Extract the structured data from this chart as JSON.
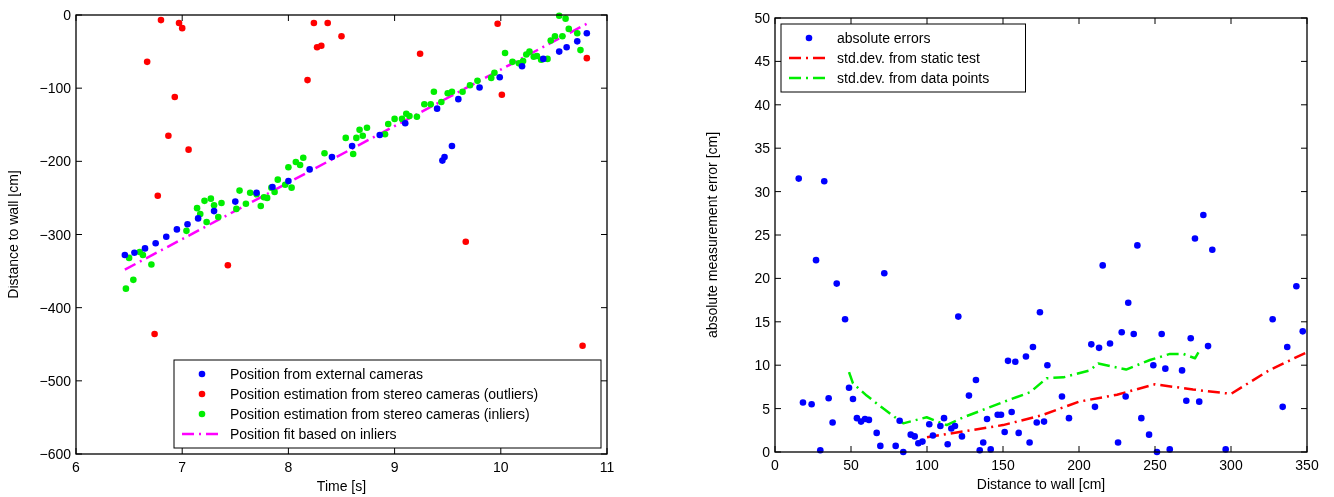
{
  "chart_data": [
    {
      "type": "scatter",
      "xlabel": "Time [s]",
      "ylabel": "Distance to wall [cm]",
      "xlim": [
        6,
        11
      ],
      "ylim": [
        -600,
        0
      ],
      "xticks": [
        6,
        7,
        8,
        9,
        10,
        11
      ],
      "yticks": [
        -600,
        -500,
        -400,
        -300,
        -200,
        -100,
        0
      ],
      "legend": "bottom right",
      "marker": "circle",
      "line_style": "dashed",
      "series": [
        {
          "name": "Position from external cameras",
          "color": "#0000ff",
          "x": [
            6.46,
            6.55,
            6.65,
            6.75,
            6.85,
            6.95,
            7.05,
            7.15,
            7.3,
            7.5,
            7.7,
            7.85,
            8.0,
            8.2,
            8.41,
            8.6,
            8.86,
            9.1,
            9.4,
            9.45,
            9.47,
            9.54,
            9.6,
            9.8,
            9.99,
            10.2,
            10.4,
            10.55,
            10.62,
            10.72,
            10.81
          ],
          "values": [
            -328,
            -325,
            -319,
            -312,
            -303,
            -293,
            -286,
            -278,
            -268,
            -255,
            -243,
            -235,
            -227,
            -211,
            -194,
            -179,
            -164,
            -148,
            -128,
            -199,
            -194,
            -179,
            -115,
            -99,
            -85,
            -70,
            -60,
            -50,
            -44,
            -36,
            -25
          ]
        },
        {
          "name": "Position estimation from stereo cameras (outliers)",
          "color": "#ff0000",
          "x": [
            6.8,
            6.67,
            6.97,
            7.0,
            6.93,
            6.87,
            7.06,
            6.77,
            8.24,
            8.37,
            8.27,
            8.31,
            8.18,
            8.5,
            9.24,
            9.97,
            10.01,
            10.81,
            9.67,
            10.77,
            7.43,
            6.74
          ],
          "values": [
            -7,
            -64,
            -11,
            -18,
            -112,
            -165,
            -184,
            -247,
            -11,
            -11,
            -44,
            -42,
            -89,
            -29,
            -53,
            -12,
            -109,
            -59,
            -310,
            -452,
            -342,
            -436
          ]
        },
        {
          "name": "Position estimation from stereo cameras (inliers)",
          "color": "#00ee00",
          "x": [
            6.47,
            6.54,
            6.5,
            6.6,
            6.63,
            6.71,
            7.04,
            7.14,
            7.17,
            7.21,
            7.23,
            7.27,
            7.3,
            7.34,
            7.37,
            7.51,
            7.54,
            7.6,
            7.64,
            7.7,
            7.74,
            7.77,
            7.8,
            7.84,
            7.87,
            7.9,
            7.97,
            8.0,
            8.03,
            8.07,
            8.11,
            8.14,
            8.34,
            8.54,
            8.61,
            8.64,
            8.67,
            8.7,
            8.74,
            8.91,
            8.94,
            9.0,
            9.07,
            9.11,
            9.14,
            9.21,
            9.28,
            9.34,
            9.37,
            9.44,
            9.5,
            9.54,
            9.64,
            9.71,
            9.78,
            9.91,
            9.94,
            10.04,
            10.11,
            10.17,
            10.21,
            10.24,
            10.27,
            10.31,
            10.34,
            10.38,
            10.44,
            10.47,
            10.51,
            10.58,
            10.55,
            10.61,
            10.64,
            10.72,
            10.75
          ],
          "values": [
            -374,
            -362,
            -332,
            -324,
            -328,
            -341,
            -295,
            -264,
            -272,
            -254,
            -283,
            -251,
            -260,
            -276,
            -257,
            -265,
            -240,
            -258,
            -243,
            -245,
            -261,
            -249,
            -250,
            -236,
            -242,
            -225,
            -232,
            -208,
            -236,
            -201,
            -205,
            -195,
            -189,
            -168,
            -190,
            -168,
            -157,
            -165,
            -154,
            -163,
            -149,
            -142,
            -142,
            -135,
            -138,
            -139,
            -122,
            -122,
            -105,
            -119,
            -107,
            -105,
            -105,
            -96,
            -90,
            -86,
            -79,
            -52,
            -64,
            -66,
            -63,
            -54,
            -50,
            -57,
            -56,
            -61,
            -60,
            -35,
            -29,
            -29,
            -1,
            -5,
            -19,
            -25,
            -48
          ]
        },
        {
          "name": "Position fit based on inliers",
          "type": "line",
          "marker": "none",
          "color": "#ff00ff",
          "x": [
            6.46,
            10.81
          ],
          "values": [
            -348,
            -12
          ]
        }
      ]
    },
    {
      "type": "scatter",
      "xlabel": "Distance to wall [cm]",
      "ylabel": "absolute measurement error [cm]",
      "xlim": [
        0,
        350
      ],
      "ylim": [
        0,
        50
      ],
      "xticks": [
        0,
        50,
        100,
        150,
        200,
        250,
        300,
        350
      ],
      "yticks": [
        0,
        5,
        10,
        15,
        20,
        25,
        30,
        35,
        40,
        45,
        50
      ],
      "legend": "top left",
      "marker": "circle",
      "line_style": "dashed",
      "series": [
        {
          "name": "absolute errors",
          "color": "#0000ff",
          "x": [
            15.6,
            32.4,
            27.0,
            71.9,
            40.6,
            46.1,
            120.6,
            174.3,
            169.7,
            165.1,
            153.3,
            158.1,
            132.2,
            179.2,
            48.7,
            51.3,
            35.3,
            18.4,
            24.1,
            37.9,
            127.6,
            53.9,
            56.6,
            59.2,
            61.8,
            66.9,
            69.3,
            79.4,
            84.4,
            29.8,
            82.0,
            89.3,
            91.9,
            94.3,
            97.0,
            101.5,
            103.9,
            108.8,
            111.2,
            113.6,
            116.0,
            118.4,
            123.0,
            137.0,
            139.5,
            134.7,
            141.9,
            146.5,
            148.7,
            151.1,
            155.7,
            160.3,
            167.5,
            172.2,
            177.0,
            215.6,
            238.4,
            232.4,
            228.1,
            236.0,
            208.1,
            213.2,
            220.4,
            254.4,
            273.5,
            284.9,
            276.3,
            281.8,
            287.7,
            248.9,
            256.8,
            267.8,
            188.8,
            193.4,
            210.5,
            230.7,
            241.0,
            246.1,
            225.7,
            251.3,
            259.7,
            270.6,
            279.1,
            296.5,
            327.4,
            337.0,
            334.0,
            343.0,
            347.2
          ],
          "values": [
            31.5,
            31.2,
            22.1,
            20.6,
            19.4,
            15.3,
            15.6,
            16.1,
            12.1,
            11.0,
            10.5,
            10.4,
            8.3,
            10.0,
            7.4,
            6.1,
            6.2,
            5.7,
            5.5,
            3.4,
            6.5,
            3.9,
            3.5,
            3.8,
            3.7,
            2.2,
            0.7,
            0.7,
            0.0,
            0.2,
            3.6,
            2.0,
            1.8,
            1.0,
            1.2,
            3.2,
            1.9,
            3.0,
            3.9,
            0.9,
            2.7,
            3.0,
            1.8,
            1.1,
            3.8,
            0.2,
            0.3,
            4.3,
            4.3,
            2.3,
            4.6,
            2.2,
            1.1,
            3.4,
            3.5,
            21.5,
            23.8,
            17.2,
            13.8,
            13.6,
            12.4,
            12.0,
            12.5,
            13.6,
            13.1,
            12.2,
            24.6,
            27.3,
            23.3,
            10.0,
            9.6,
            9.4,
            6.4,
            3.9,
            5.2,
            6.4,
            3.9,
            2.0,
            1.1,
            0.0,
            0.3,
            5.9,
            5.8,
            0.3,
            15.3,
            12.1,
            5.2,
            19.1,
            13.9
          ]
        },
        {
          "name": "std.dev. from static test",
          "type": "line",
          "marker": "none",
          "color": "#ff0000",
          "x": [
            100,
            125,
            150,
            175,
            200,
            225,
            250,
            275,
            300,
            325,
            350
          ],
          "values": [
            1.7,
            2.4,
            3.1,
            4.2,
            5.8,
            6.6,
            7.8,
            7.2,
            6.7,
            9.4,
            11.5
          ]
        },
        {
          "name": "std.dev. from data points",
          "type": "line",
          "marker": "none",
          "color": "#00ee00",
          "x": [
            48.7,
            51.3,
            60.3,
            71.3,
            84.4,
            99.8,
            112.9,
            124,
            139,
            152.4,
            168,
            178.7,
            189.7,
            207,
            212.7,
            231,
            246.7,
            259.9,
            268.6,
            276.3,
            279.6
          ],
          "values": [
            9.2,
            7.9,
            6.5,
            5.0,
            3.3,
            4.0,
            3.1,
            4.0,
            5.0,
            5.9,
            6.9,
            8.5,
            8.6,
            9.4,
            10.2,
            9.5,
            10.6,
            11.3,
            11.3,
            10.8,
            11.8
          ]
        }
      ]
    }
  ]
}
